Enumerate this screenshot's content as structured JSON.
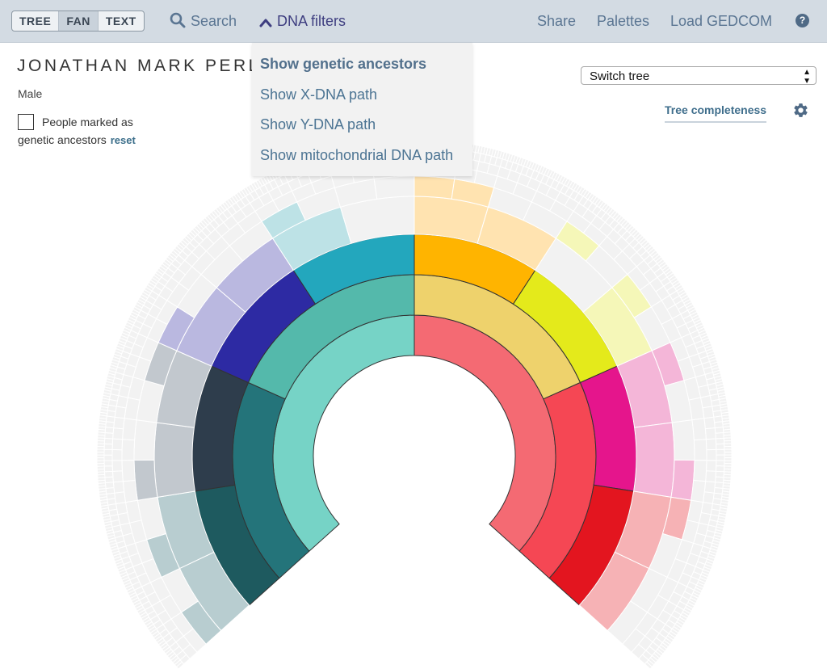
{
  "view_modes": [
    {
      "label": "TREE",
      "active": false
    },
    {
      "label": "FAN",
      "active": true
    },
    {
      "label": "TEXT",
      "active": false
    }
  ],
  "nav": {
    "search": {
      "label": "Search",
      "icon": "search-icon"
    },
    "dna_filters": {
      "label": "DNA filters",
      "icon": "chevron-up-icon"
    },
    "share": "Share",
    "palettes": "Palettes",
    "load_gedcom": "Load GEDCOM",
    "help": {
      "label": "?",
      "icon": "help-icon"
    }
  },
  "dna_menu": {
    "items": [
      {
        "label": "Show genetic ancestors",
        "selected": true
      },
      {
        "label": "Show X-DNA path",
        "selected": false
      },
      {
        "label": "Show Y-DNA path",
        "selected": false
      },
      {
        "label": "Show mitochondrial DNA path",
        "selected": false
      }
    ]
  },
  "person": {
    "name": "JONATHAN MARK PERL",
    "sex": "Male"
  },
  "genetic_filter": {
    "checked": false,
    "label_line1": "People marked as",
    "label_line2": "genetic ancestors",
    "reset": "reset"
  },
  "switch_tree": {
    "label": "Switch tree"
  },
  "tree_completeness": {
    "label": "Tree completeness",
    "icon": "gear-icon"
  },
  "fan_chart": {
    "generations": 9,
    "empty_color": "#f2f2f2",
    "outline_color": "#333333",
    "branches": [
      {
        "name": "paternal-paternal",
        "colors": [
          "#76d3c6",
          "#24747a",
          "#1e5a5f",
          "#b8cdd0"
        ]
      },
      {
        "name": "paternal-paternal-maternal",
        "colors": [
          "#76d3c6",
          "#24747a",
          "#2e3d4c",
          "#c2c8ce"
        ]
      },
      {
        "name": "paternal-maternal",
        "colors": [
          "#76d3c6",
          "#54b9ab",
          "#2d2aa3",
          "#bab8e0"
        ]
      },
      {
        "name": "paternal-maternal-maternal",
        "colors": [
          "#76d3c6",
          "#54b9ab",
          "#23a7bd",
          "#bde2e6"
        ]
      },
      {
        "name": "maternal-paternal",
        "colors": [
          "#f46a73",
          "#eed26c",
          "#ffb400",
          "#ffe3b0"
        ]
      },
      {
        "name": "maternal-paternal-maternal",
        "colors": [
          "#f46a73",
          "#eed26c",
          "#e4ea1b",
          "#f5f7b8"
        ]
      },
      {
        "name": "maternal-maternal",
        "colors": [
          "#f46a73",
          "#f54754",
          "#e5158c",
          "#f4b6d8"
        ]
      },
      {
        "name": "maternal-maternal-maternal",
        "colors": [
          "#f46a73",
          "#f54754",
          "#e3151f",
          "#f6b2b5"
        ]
      }
    ]
  }
}
